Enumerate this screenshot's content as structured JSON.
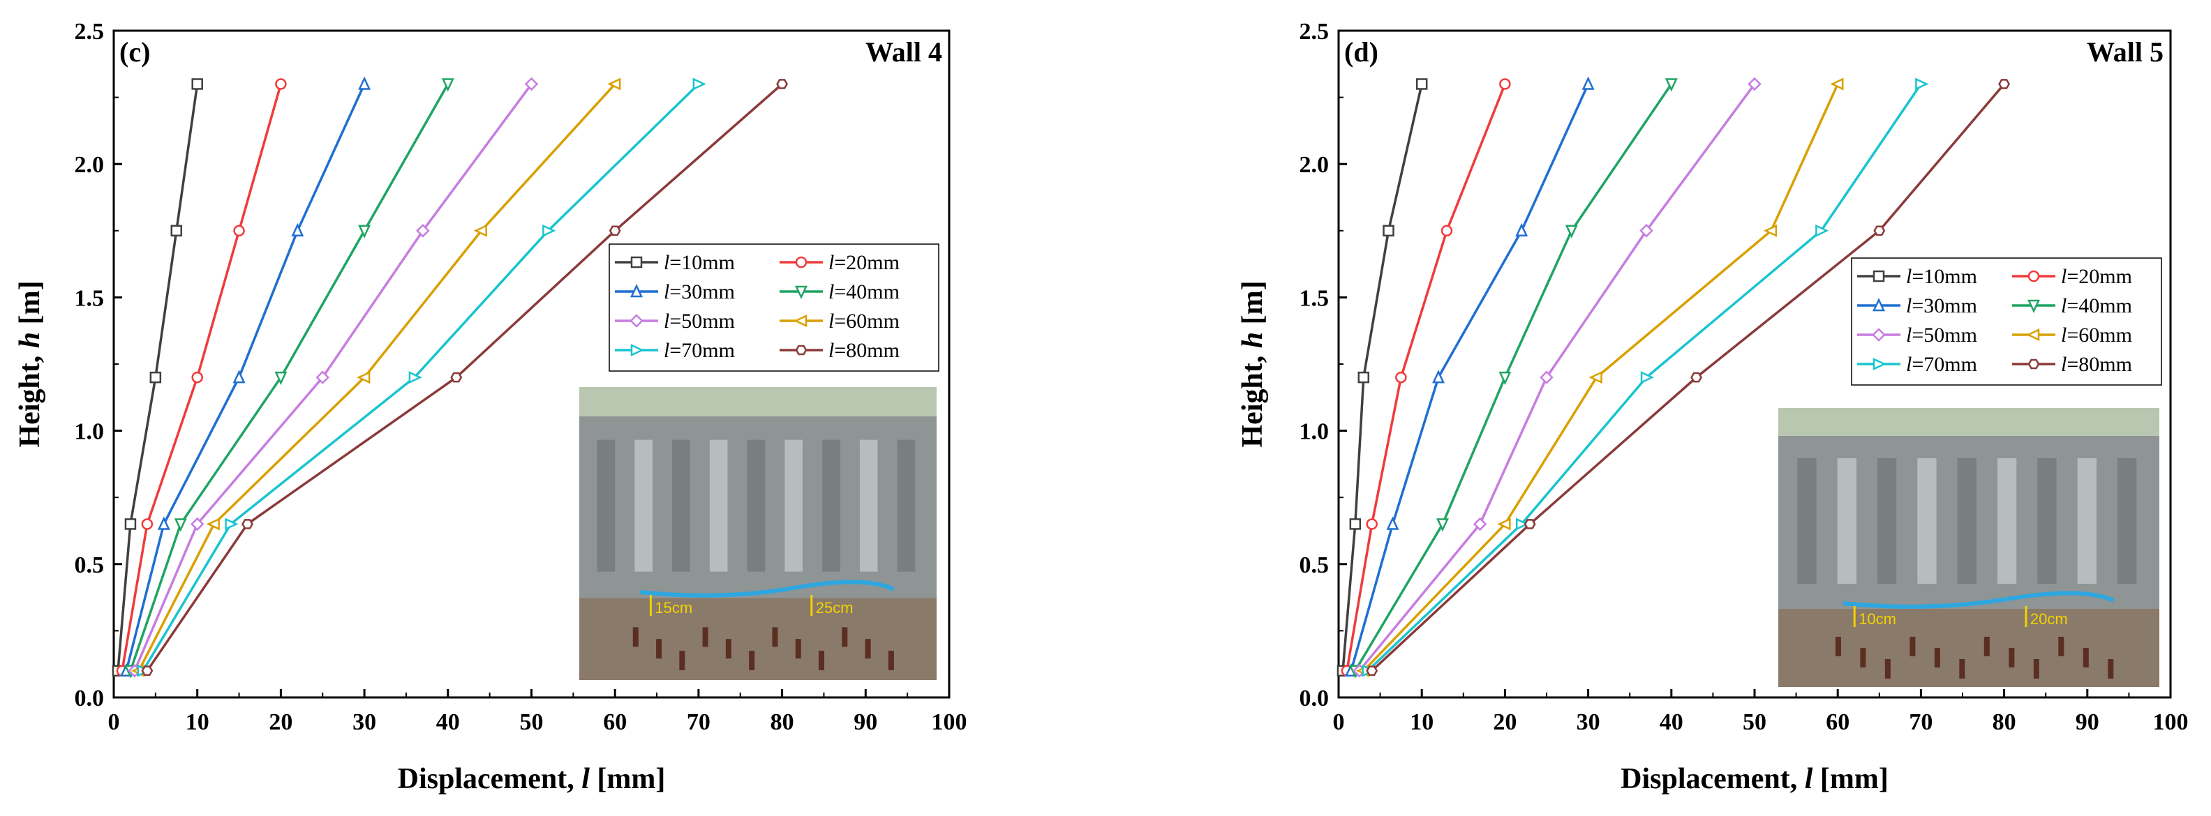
{
  "chart_data": [
    {
      "type": "line",
      "panel": "(c)",
      "title": "Wall 4",
      "xlabel_prefix": "Displacement, ",
      "xlabel_var": "l",
      "xlabel_suffix": " [mm]",
      "ylabel_prefix": "Height, ",
      "ylabel_var": "h",
      "ylabel_suffix": " [m]",
      "xlim": [
        0,
        100
      ],
      "ylim": [
        0,
        2.5
      ],
      "xticks": [
        "0",
        "10",
        "20",
        "30",
        "40",
        "50",
        "60",
        "70",
        "80",
        "90",
        "100"
      ],
      "yticks": [
        "0.0",
        "0.5",
        "1.0",
        "1.5",
        "2.0",
        "2.5"
      ],
      "legend_position": "right-middle",
      "photo_labels": [
        "15cm",
        "25cm"
      ],
      "series": [
        {
          "name": "=10mm",
          "color": "#404040",
          "marker": "square",
          "points": [
            [
              0.5,
              0.1
            ],
            [
              2,
              0.65
            ],
            [
              5,
              1.2
            ],
            [
              7.5,
              1.75
            ],
            [
              10,
              2.3
            ]
          ]
        },
        {
          "name": "=20mm",
          "color": "#ef3b3b",
          "marker": "circle",
          "points": [
            [
              1,
              0.1
            ],
            [
              4,
              0.65
            ],
            [
              10,
              1.2
            ],
            [
              15,
              1.75
            ],
            [
              20,
              2.3
            ]
          ]
        },
        {
          "name": "=30mm",
          "color": "#1f6fd1",
          "marker": "triangle",
          "points": [
            [
              1.5,
              0.1
            ],
            [
              6,
              0.65
            ],
            [
              15,
              1.2
            ],
            [
              22,
              1.75
            ],
            [
              30,
              2.3
            ]
          ]
        },
        {
          "name": "=40mm",
          "color": "#1fa463",
          "marker": "triangle-down",
          "points": [
            [
              2,
              0.1
            ],
            [
              8,
              0.65
            ],
            [
              20,
              1.2
            ],
            [
              30,
              1.75
            ],
            [
              40,
              2.3
            ]
          ]
        },
        {
          "name": "=50mm",
          "color": "#c77de0",
          "marker": "diamond",
          "points": [
            [
              2.5,
              0.1
            ],
            [
              10,
              0.65
            ],
            [
              25,
              1.2
            ],
            [
              37,
              1.75
            ],
            [
              50,
              2.3
            ]
          ]
        },
        {
          "name": "=60mm",
          "color": "#d9a000",
          "marker": "triangle-left",
          "points": [
            [
              3,
              0.1
            ],
            [
              12,
              0.65
            ],
            [
              30,
              1.2
            ],
            [
              44,
              1.75
            ],
            [
              60,
              2.3
            ]
          ]
        },
        {
          "name": "=70mm",
          "color": "#19c4cf",
          "marker": "triangle-right",
          "points": [
            [
              3.5,
              0.1
            ],
            [
              14,
              0.65
            ],
            [
              36,
              1.2
            ],
            [
              52,
              1.75
            ],
            [
              70,
              2.3
            ]
          ]
        },
        {
          "name": "=80mm",
          "color": "#8b3a3a",
          "marker": "hexagon",
          "points": [
            [
              4,
              0.1
            ],
            [
              16,
              0.65
            ],
            [
              41,
              1.2
            ],
            [
              60,
              1.75
            ],
            [
              80,
              2.3
            ]
          ]
        }
      ]
    },
    {
      "type": "line",
      "panel": "(d)",
      "title": "Wall 5",
      "xlabel_prefix": "Displacement, ",
      "xlabel_var": "l",
      "xlabel_suffix": " [mm]",
      "ylabel_prefix": "Height, ",
      "ylabel_var": "h",
      "ylabel_suffix": " [m]",
      "xlim": [
        0,
        100
      ],
      "ylim": [
        0,
        2.5
      ],
      "xticks": [
        "0",
        "10",
        "20",
        "30",
        "40",
        "50",
        "60",
        "70",
        "80",
        "90",
        "100"
      ],
      "yticks": [
        "0.0",
        "0.5",
        "1.0",
        "1.5",
        "2.0",
        "2.5"
      ],
      "legend_position": "right-middle",
      "photo_labels": [
        "10cm",
        "20cm"
      ],
      "series": [
        {
          "name": "=10mm",
          "color": "#404040",
          "marker": "square",
          "points": [
            [
              0.5,
              0.1
            ],
            [
              2,
              0.65
            ],
            [
              3,
              1.2
            ],
            [
              6,
              1.75
            ],
            [
              10,
              2.3
            ]
          ]
        },
        {
          "name": "=20mm",
          "color": "#ef3b3b",
          "marker": "circle",
          "points": [
            [
              1,
              0.1
            ],
            [
              4,
              0.65
            ],
            [
              7.5,
              1.2
            ],
            [
              13,
              1.75
            ],
            [
              20,
              2.3
            ]
          ]
        },
        {
          "name": "=30mm",
          "color": "#1f6fd1",
          "marker": "triangle",
          "points": [
            [
              1.5,
              0.1
            ],
            [
              6.5,
              0.65
            ],
            [
              12,
              1.2
            ],
            [
              22,
              1.75
            ],
            [
              30,
              2.3
            ]
          ]
        },
        {
          "name": "=40mm",
          "color": "#1fa463",
          "marker": "triangle-down",
          "points": [
            [
              2,
              0.1
            ],
            [
              12.5,
              0.65
            ],
            [
              20,
              1.2
            ],
            [
              28,
              1.75
            ],
            [
              40,
              2.3
            ]
          ]
        },
        {
          "name": "=50mm",
          "color": "#c77de0",
          "marker": "diamond",
          "points": [
            [
              2.5,
              0.1
            ],
            [
              17,
              0.65
            ],
            [
              25,
              1.2
            ],
            [
              37,
              1.75
            ],
            [
              50,
              2.3
            ]
          ]
        },
        {
          "name": "=60mm",
          "color": "#d9a000",
          "marker": "triangle-left",
          "points": [
            [
              3,
              0.1
            ],
            [
              20,
              0.65
            ],
            [
              31,
              1.2
            ],
            [
              52,
              1.75
            ],
            [
              60,
              2.3
            ]
          ]
        },
        {
          "name": "=70mm",
          "color": "#19c4cf",
          "marker": "triangle-right",
          "points": [
            [
              3.5,
              0.1
            ],
            [
              22,
              0.65
            ],
            [
              37,
              1.2
            ],
            [
              58,
              1.75
            ],
            [
              70,
              2.3
            ]
          ]
        },
        {
          "name": "=80mm",
          "color": "#8b3a3a",
          "marker": "hexagon",
          "points": [
            [
              4,
              0.1
            ],
            [
              23,
              0.65
            ],
            [
              43,
              1.2
            ],
            [
              65,
              1.75
            ],
            [
              80,
              2.3
            ]
          ]
        }
      ]
    }
  ]
}
